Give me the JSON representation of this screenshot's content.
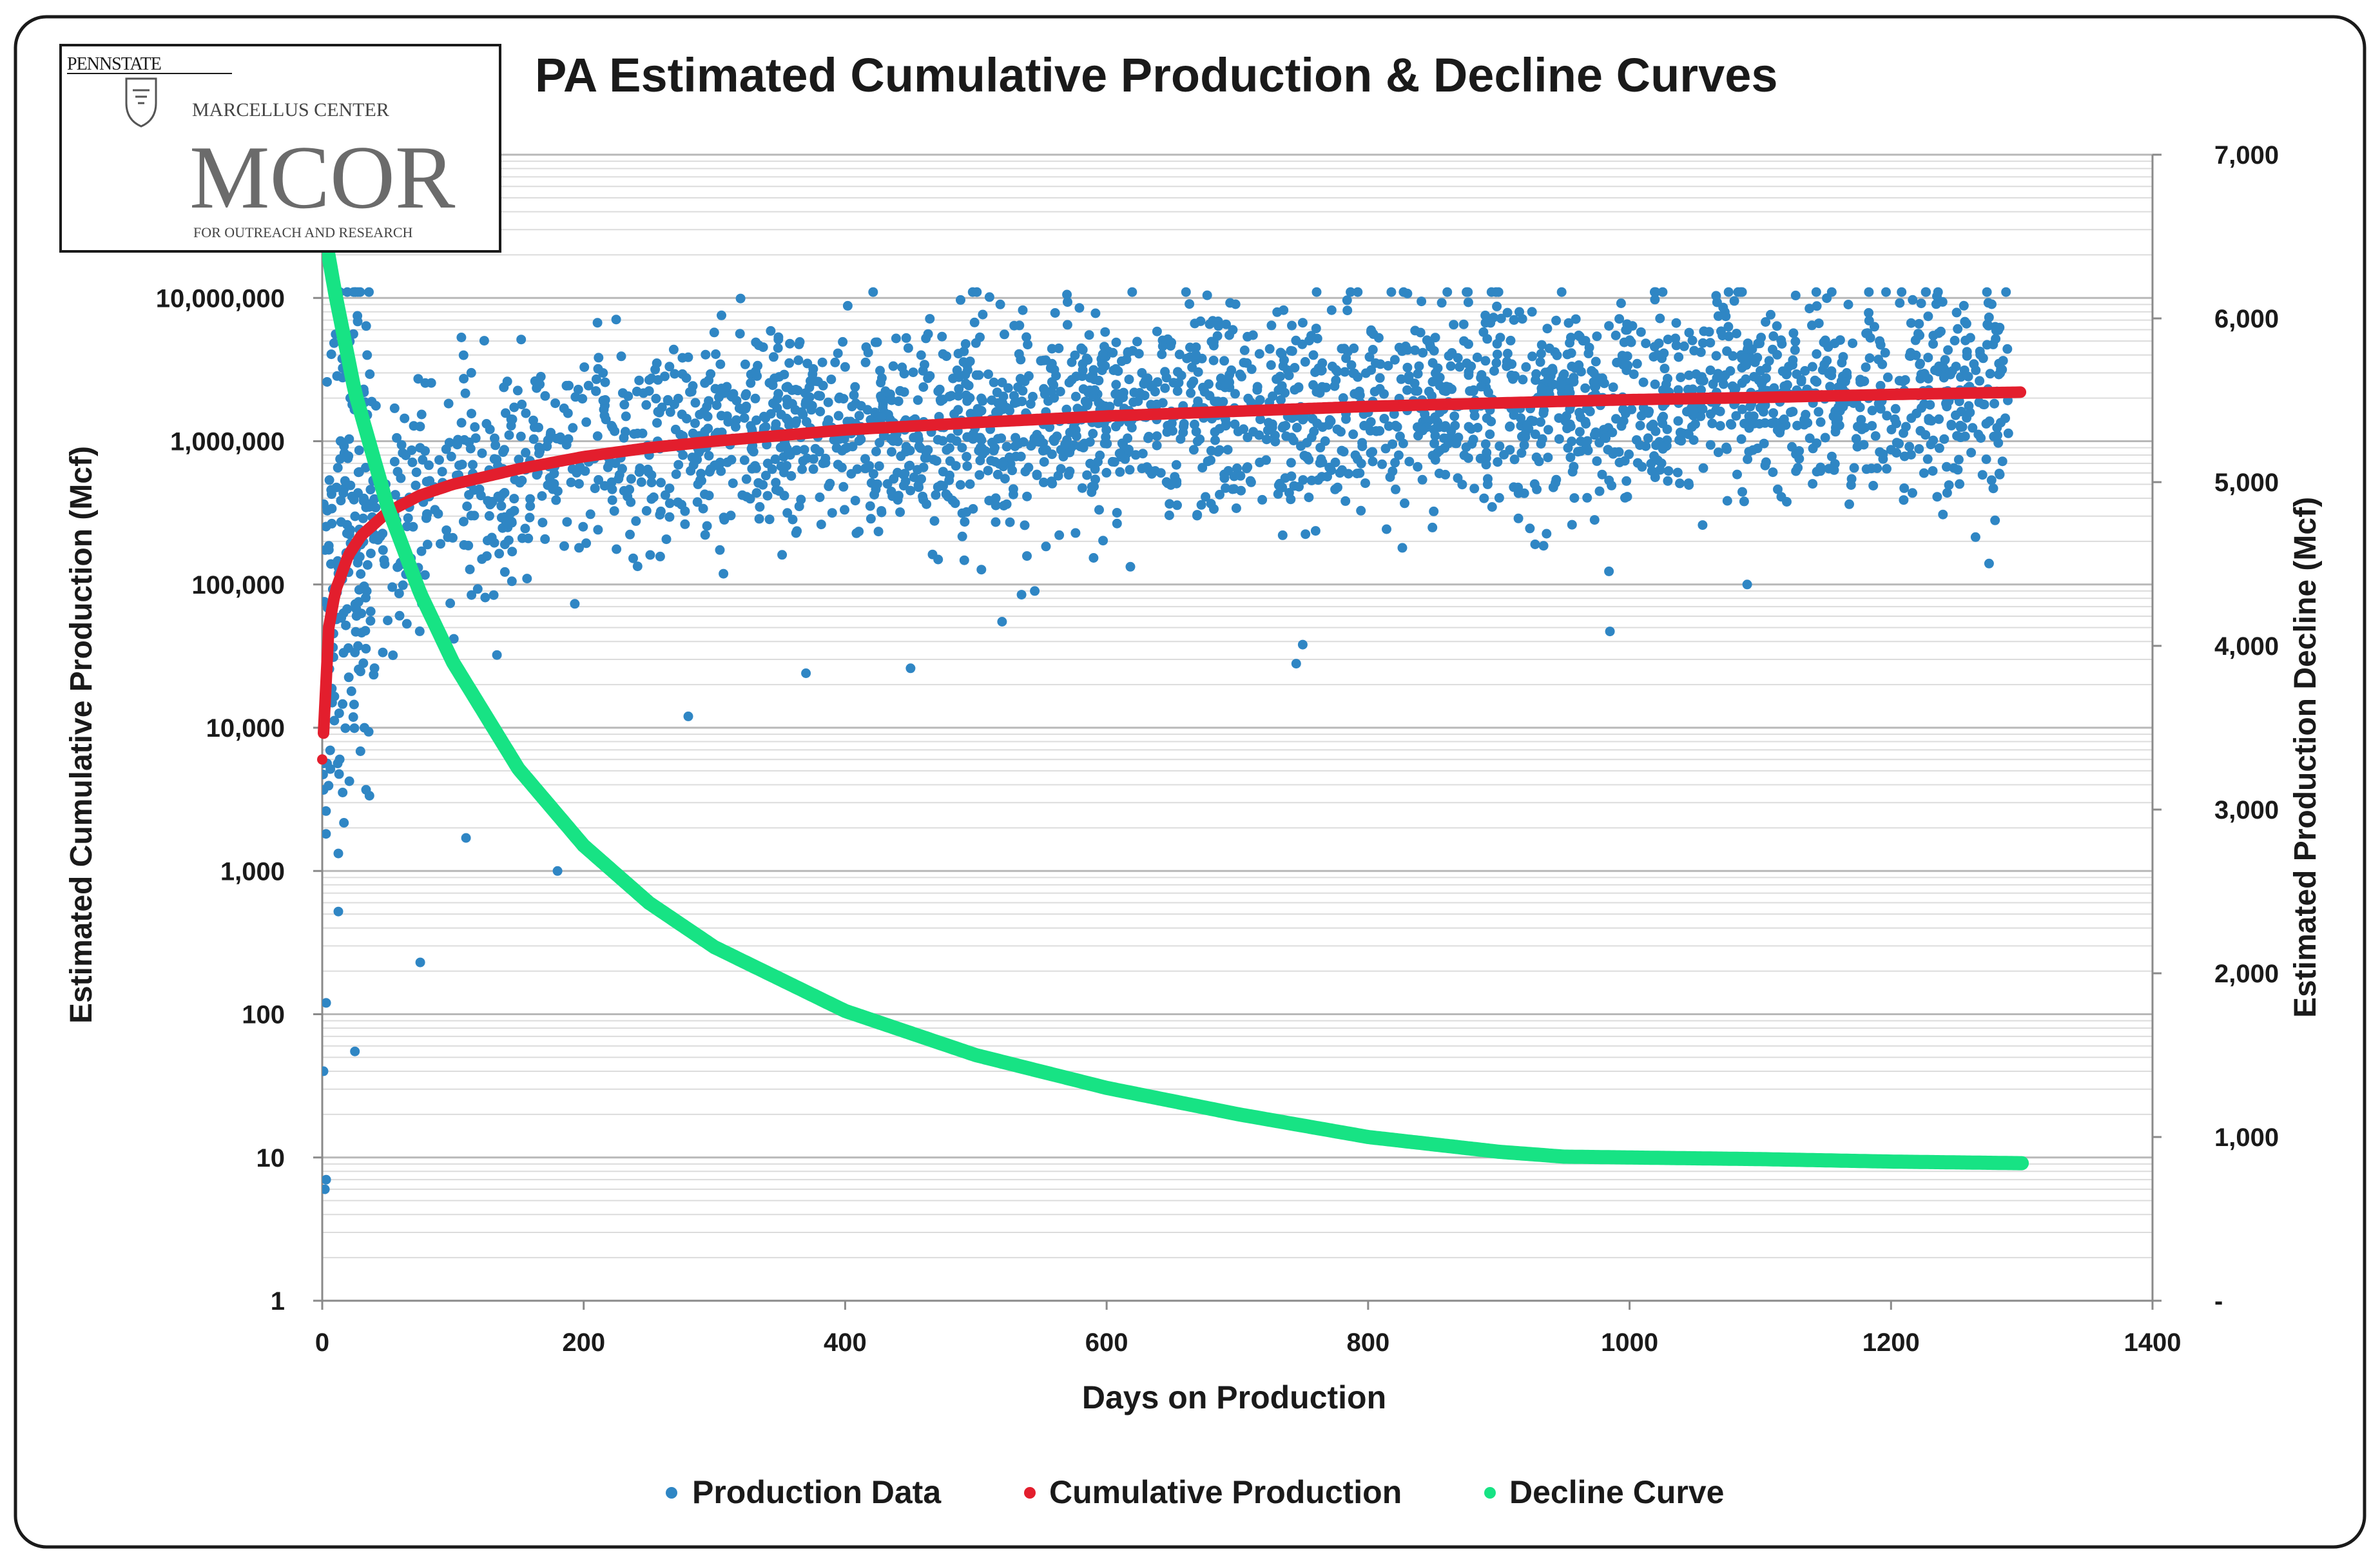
{
  "chart_data": {
    "type": "scatter",
    "title": "PA Estimated Cumulative Production & Decline Curves",
    "xlabel": "Days on Production",
    "ylabel_left": "Estimated Cumulative Production (Mcf)",
    "ylabel_right": "Estimated Production Decline (Mcf)",
    "x_range": [
      0,
      1400
    ],
    "x_ticks": [
      0,
      200,
      400,
      600,
      800,
      1000,
      1200,
      1400
    ],
    "x_tick_labels": [
      "0",
      "200",
      "400",
      "600",
      "800",
      "1000",
      "1200",
      "1400"
    ],
    "y_left_scale": "log",
    "y_left_range": [
      1,
      100000000
    ],
    "y_left_ticks": [
      1,
      10,
      100,
      1000,
      10000,
      100000,
      1000000,
      10000000
    ],
    "y_left_tick_labels": [
      "1",
      "10",
      "100",
      "1,000",
      "10,000",
      "100,000",
      "1,000,000",
      "10,000,000"
    ],
    "y_right_scale": "linear",
    "y_right_range": [
      0,
      7000
    ],
    "y_right_ticks": [
      0,
      1000,
      2000,
      3000,
      4000,
      5000,
      6000,
      7000
    ],
    "y_right_tick_labels": [
      "-",
      "1,000",
      "2,000",
      "3,000",
      "4,000",
      "5,000",
      "6,000",
      "7,000"
    ],
    "grid": true,
    "legend_position": "bottom-center",
    "legend": [
      "Production Data",
      "Cumulative Production",
      "Decline Curve"
    ],
    "series": [
      {
        "name": "Production Data",
        "type": "scatter",
        "axis": "left",
        "color": "#2f86c4",
        "approx_points": 2800,
        "description_model": "lognormal scatter around the cumulative trend",
        "x_range": [
          0,
          1290
        ],
        "outliers": [
          {
            "x": 2,
            "y": 6
          },
          {
            "x": 3,
            "y": 7
          },
          {
            "x": 1,
            "y": 40
          },
          {
            "x": 3,
            "y": 120
          },
          {
            "x": 25,
            "y": 55
          },
          {
            "x": 75,
            "y": 230
          },
          {
            "x": 110,
            "y": 1700
          },
          {
            "x": 180,
            "y": 1000
          },
          {
            "x": 280,
            "y": 12000
          },
          {
            "x": 370,
            "y": 24000
          },
          {
            "x": 450,
            "y": 26000
          },
          {
            "x": 520,
            "y": 55000
          },
          {
            "x": 545,
            "y": 90000
          },
          {
            "x": 745,
            "y": 28000
          },
          {
            "x": 750,
            "y": 38000
          },
          {
            "x": 985,
            "y": 47000
          },
          {
            "x": 1090,
            "y": 100000
          },
          {
            "x": 1275,
            "y": 140000
          }
        ]
      },
      {
        "name": "Cumulative Production",
        "type": "line",
        "axis": "left",
        "color": "#e31e2d",
        "x": [
          0,
          5,
          10,
          20,
          30,
          50,
          75,
          100,
          150,
          200,
          250,
          300,
          400,
          500,
          600,
          700,
          800,
          900,
          1000,
          1100,
          1200,
          1300
        ],
        "y": [
          6000,
          50000,
          90000,
          160000,
          220000,
          320000,
          420000,
          500000,
          640000,
          780000,
          900000,
          1000000,
          1200000,
          1350000,
          1500000,
          1620000,
          1750000,
          1850000,
          1950000,
          2020000,
          2120000,
          2200000
        ]
      },
      {
        "name": "Decline Curve",
        "type": "line",
        "axis": "right",
        "color": "#17e384",
        "x": [
          0,
          10,
          25,
          50,
          75,
          100,
          150,
          200,
          250,
          300,
          400,
          500,
          600,
          700,
          800,
          900,
          950,
          1000,
          1100,
          1200,
          1300
        ],
        "y": [
          6600,
          6150,
          5550,
          4850,
          4320,
          3900,
          3250,
          2780,
          2430,
          2160,
          1770,
          1500,
          1300,
          1140,
          1000,
          910,
          880,
          875,
          865,
          850,
          840
        ]
      }
    ]
  },
  "colors": {
    "scatter": "#2f86c4",
    "cumulative": "#e31e2d",
    "decline": "#17e384",
    "grid": "#c9c9c9",
    "frame": "#1a1a1a"
  },
  "logo": {
    "university": "PENNSTATE",
    "center": "MARCELLUS CENTER",
    "acronym": "MCOR",
    "tagline": "FOR OUTREACH AND RESEARCH"
  }
}
